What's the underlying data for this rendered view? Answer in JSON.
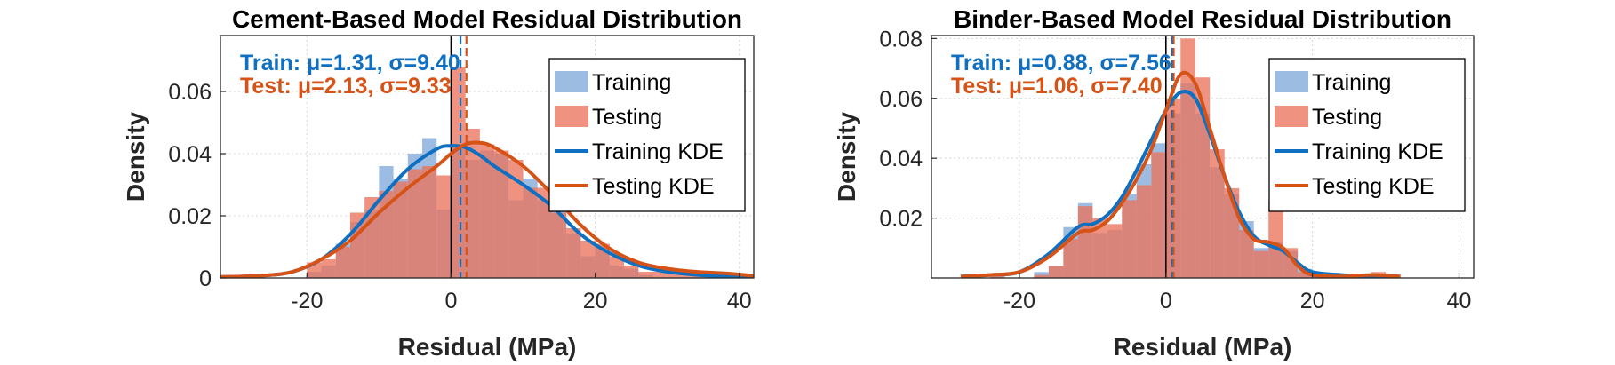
{
  "chart_data": [
    {
      "type": "histogram",
      "title": "Cement-Based Model Residual Distribution",
      "xlabel": "Residual (MPa)",
      "ylabel": "Density",
      "xlim": [
        -32,
        42
      ],
      "ylim": [
        0,
        0.078
      ],
      "xticks": [
        -20,
        0,
        20,
        40
      ],
      "yticks": [
        0,
        0.02,
        0.04,
        0.06
      ],
      "ytick_labels": [
        "0",
        "0.02",
        "0.04",
        "0.06"
      ],
      "grid": true,
      "legend_location": "top-right",
      "legend": [
        "Training",
        "Testing",
        "Training KDE",
        "Testing KDE"
      ],
      "stats": {
        "train_text": "Train: μ=1.31, σ=9.40",
        "test_text": "Test: μ=2.13, σ=9.33",
        "train_mean": 1.31,
        "test_mean": 2.13
      },
      "bins": {
        "edges": [
          -20,
          -18,
          -16,
          -14,
          -12,
          -10,
          -8,
          -6,
          -4,
          -2,
          0,
          2,
          4,
          6,
          8,
          10,
          12,
          14,
          16,
          18,
          20,
          22,
          24,
          26,
          28,
          30,
          32,
          34,
          36,
          38,
          40
        ],
        "train": [
          0.002,
          0.004,
          0.011,
          0.018,
          0.022,
          0.036,
          0.032,
          0.04,
          0.045,
          0.022,
          0.042,
          0.038,
          0.041,
          0.04,
          0.025,
          0.032,
          0.025,
          0.022,
          0.014,
          0.007,
          0.01,
          0.004,
          0.003,
          0.001,
          0,
          0,
          0,
          0,
          0,
          0
        ],
        "test": [
          0.005,
          0.006,
          0.01,
          0.021,
          0.026,
          0.028,
          0.031,
          0.035,
          0.036,
          0.033,
          0.068,
          0.048,
          0.043,
          0.041,
          0.038,
          0.029,
          0.029,
          0.021,
          0.016,
          0.012,
          0.011,
          0.007,
          0.004,
          0.002,
          0.002,
          0.002,
          0.002,
          0.002,
          0.002,
          0.001
        ]
      },
      "kde": {
        "x": [
          -32,
          -26,
          -22,
          -18,
          -14,
          -10,
          -6,
          -2,
          0,
          2,
          4,
          6,
          10,
          14,
          18,
          22,
          26,
          30,
          34,
          38,
          42
        ],
        "train": [
          0.0003,
          0.0008,
          0.002,
          0.006,
          0.014,
          0.025,
          0.035,
          0.0415,
          0.0425,
          0.042,
          0.0395,
          0.036,
          0.03,
          0.023,
          0.014,
          0.008,
          0.004,
          0.002,
          0.001,
          0.0005,
          0.0002
        ],
        "test": [
          0.0003,
          0.0008,
          0.002,
          0.006,
          0.012,
          0.021,
          0.029,
          0.036,
          0.04,
          0.043,
          0.0435,
          0.042,
          0.036,
          0.027,
          0.017,
          0.0095,
          0.005,
          0.003,
          0.002,
          0.0015,
          0.0007
        ]
      }
    },
    {
      "type": "histogram",
      "title": "Binder-Based Model Residual Distribution",
      "xlabel": "Residual (MPa)",
      "ylabel": "Density",
      "xlim": [
        -32,
        42
      ],
      "ylim": [
        0,
        0.081
      ],
      "xticks": [
        -20,
        0,
        20,
        40
      ],
      "yticks": [
        0.02,
        0.04,
        0.06,
        0.08
      ],
      "ytick_labels": [
        "0.02",
        "0.04",
        "0.06",
        "0.08"
      ],
      "grid": true,
      "legend_location": "top-right",
      "legend": [
        "Training",
        "Testing",
        "Training KDE",
        "Testing KDE"
      ],
      "stats": {
        "train_text": "Train: μ=0.88, σ=7.56",
        "test_text": "Test: μ=1.06, σ=7.40",
        "train_mean": 0.88,
        "test_mean": 1.06
      },
      "bins": {
        "edges": [
          -28,
          -26,
          -24,
          -22,
          -20,
          -18,
          -16,
          -14,
          -12,
          -10,
          -8,
          -6,
          -4,
          -2,
          0,
          2,
          4,
          6,
          8,
          10,
          12,
          14,
          16,
          18,
          20,
          22,
          24,
          26,
          28,
          30,
          32
        ],
        "train": [
          0.001,
          0,
          0,
          0,
          0,
          0.002,
          0.004,
          0.017,
          0.025,
          0.015,
          0.016,
          0.028,
          0.038,
          0.045,
          0.055,
          0.065,
          0.055,
          0.037,
          0.028,
          0.019,
          0.01,
          0.012,
          0.009,
          0.003,
          0.001,
          0,
          0,
          0,
          0,
          0
        ],
        "test": [
          0,
          0,
          0.001,
          0,
          0,
          0.001,
          0.004,
          0.013,
          0.024,
          0.02,
          0.018,
          0.026,
          0.031,
          0.042,
          0.06,
          0.08,
          0.067,
          0.043,
          0.03,
          0.016,
          0.009,
          0.026,
          0.01,
          0.002,
          0,
          0,
          0,
          0,
          0.002,
          0
        ]
      },
      "kde": {
        "x": [
          -28,
          -24,
          -20,
          -16,
          -12,
          -10,
          -8,
          -6,
          -4,
          -2,
          0,
          2,
          4,
          6,
          8,
          10,
          12,
          14,
          16,
          18,
          20,
          24,
          28,
          32
        ],
        "train": [
          0.0005,
          0.001,
          0.002,
          0.008,
          0.017,
          0.018,
          0.021,
          0.027,
          0.036,
          0.046,
          0.056,
          0.062,
          0.06,
          0.048,
          0.034,
          0.022,
          0.014,
          0.011,
          0.009,
          0.005,
          0.002,
          0.001,
          0.0005,
          0.0002
        ],
        "test": [
          0.0005,
          0.001,
          0.002,
          0.007,
          0.015,
          0.016,
          0.019,
          0.025,
          0.033,
          0.043,
          0.056,
          0.068,
          0.065,
          0.05,
          0.034,
          0.02,
          0.013,
          0.012,
          0.01,
          0.004,
          0.001,
          0.0005,
          0.001,
          0.0005
        ]
      }
    }
  ],
  "colors": {
    "train_fill": "#7ba7d7",
    "test_fill": "#ea735c",
    "train_line": "#0f6fc0",
    "test_line": "#d55317",
    "axis": "#262626",
    "grid": "#d4d4d4"
  }
}
